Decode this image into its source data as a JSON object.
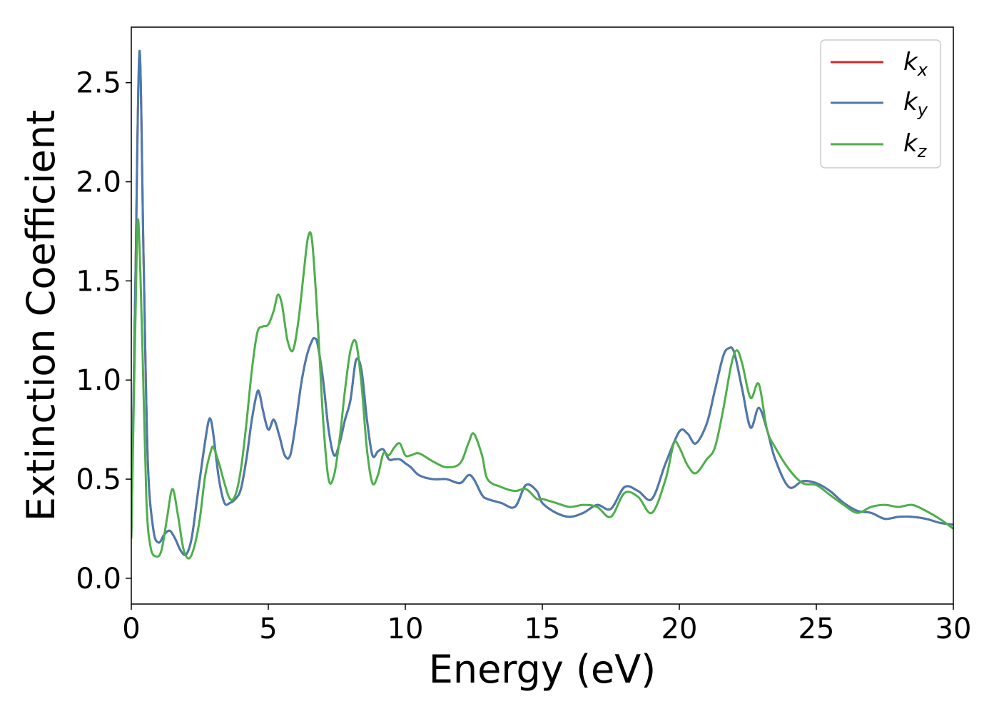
{
  "chart_data": {
    "type": "line",
    "title": "",
    "xlabel": "Energy (eV)",
    "ylabel": "Extinction Coefficient",
    "xlim": [
      0,
      30
    ],
    "ylim": [
      -0.13,
      2.78
    ],
    "xticks": [
      0,
      5,
      10,
      15,
      20,
      25,
      30
    ],
    "yticks": [
      0.0,
      0.5,
      1.0,
      1.5,
      2.0,
      2.5
    ],
    "xtick_labels": [
      "0",
      "5",
      "10",
      "15",
      "20",
      "25",
      "30"
    ],
    "ytick_labels": [
      "0.0",
      "0.5",
      "1.0",
      "1.5",
      "2.0",
      "2.5"
    ],
    "grid": false,
    "legend_position": "top-right",
    "series": [
      {
        "name": "k_x",
        "label_main": "k",
        "label_sub": "x",
        "color": "#d62728",
        "x": [
          0,
          0.15,
          0.3,
          0.45,
          0.6,
          0.8,
          1.0,
          1.2,
          1.4,
          1.6,
          1.8,
          2.0,
          2.2,
          2.4,
          2.6,
          2.8,
          2.9,
          3.0,
          3.2,
          3.4,
          3.6,
          3.8,
          4.0,
          4.2,
          4.4,
          4.6,
          4.7,
          4.8,
          5.0,
          5.2,
          5.4,
          5.6,
          5.8,
          6.0,
          6.2,
          6.4,
          6.6,
          6.7,
          6.8,
          7.0,
          7.2,
          7.4,
          7.6,
          7.8,
          8.0,
          8.2,
          8.4,
          8.6,
          8.8,
          9.0,
          9.2,
          9.4,
          9.6,
          9.8,
          10.0,
          10.2,
          10.5,
          11.0,
          11.5,
          12.0,
          12.3,
          12.5,
          12.8,
          13.0,
          13.5,
          14.0,
          14.4,
          14.8,
          15.0,
          15.5,
          16.0,
          16.5,
          17.0,
          17.5,
          18.0,
          18.5,
          19.0,
          19.5,
          20.0,
          20.3,
          20.6,
          21.0,
          21.3,
          21.6,
          21.8,
          22.0,
          22.3,
          22.6,
          22.9,
          23.2,
          23.5,
          24.0,
          24.5,
          25.0,
          25.5,
          26.0,
          26.5,
          27.0,
          27.5,
          28.0,
          28.5,
          29.0,
          29.5,
          30.0
        ],
        "y": [
          0.2,
          1.5,
          2.66,
          1.6,
          0.6,
          0.25,
          0.18,
          0.22,
          0.24,
          0.2,
          0.14,
          0.12,
          0.2,
          0.4,
          0.6,
          0.78,
          0.8,
          0.72,
          0.5,
          0.38,
          0.38,
          0.4,
          0.45,
          0.6,
          0.8,
          0.94,
          0.92,
          0.85,
          0.75,
          0.8,
          0.72,
          0.62,
          0.62,
          0.78,
          0.98,
          1.12,
          1.2,
          1.21,
          1.18,
          1.0,
          0.75,
          0.62,
          0.68,
          0.8,
          0.9,
          1.1,
          1.05,
          0.8,
          0.62,
          0.64,
          0.65,
          0.6,
          0.6,
          0.6,
          0.58,
          0.56,
          0.52,
          0.5,
          0.5,
          0.48,
          0.52,
          0.5,
          0.42,
          0.4,
          0.38,
          0.36,
          0.47,
          0.44,
          0.38,
          0.33,
          0.31,
          0.33,
          0.37,
          0.35,
          0.46,
          0.44,
          0.4,
          0.58,
          0.74,
          0.73,
          0.68,
          0.78,
          0.95,
          1.12,
          1.16,
          1.14,
          0.95,
          0.76,
          0.86,
          0.75,
          0.6,
          0.46,
          0.49,
          0.48,
          0.44,
          0.38,
          0.34,
          0.33,
          0.3,
          0.31,
          0.31,
          0.3,
          0.28,
          0.27
        ],
        "note_hidden_under": "k_y"
      },
      {
        "name": "k_y",
        "label_main": "k",
        "label_sub": "y",
        "color": "#4a7ab0",
        "x": [
          0,
          0.15,
          0.3,
          0.45,
          0.6,
          0.8,
          1.0,
          1.2,
          1.4,
          1.6,
          1.8,
          2.0,
          2.2,
          2.4,
          2.6,
          2.8,
          2.9,
          3.0,
          3.2,
          3.4,
          3.6,
          3.8,
          4.0,
          4.2,
          4.4,
          4.6,
          4.7,
          4.8,
          5.0,
          5.2,
          5.4,
          5.6,
          5.8,
          6.0,
          6.2,
          6.4,
          6.6,
          6.7,
          6.8,
          7.0,
          7.2,
          7.4,
          7.6,
          7.8,
          8.0,
          8.2,
          8.4,
          8.6,
          8.8,
          9.0,
          9.2,
          9.4,
          9.6,
          9.8,
          10.0,
          10.2,
          10.5,
          11.0,
          11.5,
          12.0,
          12.3,
          12.5,
          12.8,
          13.0,
          13.5,
          14.0,
          14.4,
          14.8,
          15.0,
          15.5,
          16.0,
          16.5,
          17.0,
          17.5,
          18.0,
          18.5,
          19.0,
          19.5,
          20.0,
          20.3,
          20.6,
          21.0,
          21.3,
          21.6,
          21.8,
          22.0,
          22.3,
          22.6,
          22.9,
          23.2,
          23.5,
          24.0,
          24.5,
          25.0,
          25.5,
          26.0,
          26.5,
          27.0,
          27.5,
          28.0,
          28.5,
          29.0,
          29.5,
          30.0
        ],
        "y": [
          0.2,
          1.5,
          2.66,
          1.6,
          0.6,
          0.25,
          0.18,
          0.22,
          0.24,
          0.2,
          0.14,
          0.12,
          0.2,
          0.4,
          0.6,
          0.78,
          0.8,
          0.72,
          0.5,
          0.38,
          0.38,
          0.4,
          0.45,
          0.6,
          0.8,
          0.94,
          0.92,
          0.85,
          0.75,
          0.8,
          0.72,
          0.62,
          0.62,
          0.78,
          0.98,
          1.12,
          1.2,
          1.21,
          1.18,
          1.0,
          0.75,
          0.62,
          0.68,
          0.8,
          0.9,
          1.1,
          1.05,
          0.8,
          0.62,
          0.64,
          0.65,
          0.6,
          0.6,
          0.6,
          0.58,
          0.56,
          0.52,
          0.5,
          0.5,
          0.48,
          0.52,
          0.5,
          0.42,
          0.4,
          0.38,
          0.36,
          0.47,
          0.44,
          0.38,
          0.33,
          0.31,
          0.33,
          0.37,
          0.35,
          0.46,
          0.44,
          0.4,
          0.58,
          0.74,
          0.73,
          0.68,
          0.78,
          0.95,
          1.12,
          1.16,
          1.14,
          0.95,
          0.76,
          0.86,
          0.75,
          0.6,
          0.46,
          0.49,
          0.48,
          0.44,
          0.38,
          0.34,
          0.33,
          0.3,
          0.31,
          0.31,
          0.3,
          0.28,
          0.27
        ]
      },
      {
        "name": "k_z",
        "label_main": "k",
        "label_sub": "z",
        "color": "#4daf4a",
        "x": [
          0,
          0.15,
          0.25,
          0.4,
          0.55,
          0.7,
          0.9,
          1.1,
          1.3,
          1.5,
          1.7,
          1.9,
          2.1,
          2.3,
          2.5,
          2.7,
          2.9,
          3.0,
          3.2,
          3.4,
          3.6,
          3.8,
          4.0,
          4.2,
          4.4,
          4.6,
          4.8,
          5.0,
          5.2,
          5.35,
          5.5,
          5.7,
          5.9,
          6.1,
          6.3,
          6.45,
          6.6,
          6.8,
          7.0,
          7.2,
          7.4,
          7.6,
          7.8,
          8.0,
          8.2,
          8.4,
          8.6,
          8.8,
          9.0,
          9.2,
          9.4,
          9.6,
          9.8,
          10.0,
          10.2,
          10.5,
          11.0,
          11.5,
          12.0,
          12.3,
          12.5,
          12.8,
          13.0,
          13.5,
          14.0,
          14.4,
          14.8,
          15.0,
          15.5,
          16.0,
          16.5,
          17.0,
          17.5,
          18.0,
          18.5,
          19.0,
          19.5,
          19.8,
          20.0,
          20.3,
          20.6,
          21.0,
          21.3,
          21.6,
          21.9,
          22.1,
          22.3,
          22.6,
          22.9,
          23.2,
          23.5,
          24.0,
          24.5,
          25.0,
          25.5,
          26.0,
          26.5,
          27.0,
          27.5,
          28.0,
          28.5,
          29.0,
          29.5,
          30.0
        ],
        "y": [
          0.2,
          1.3,
          1.81,
          1.2,
          0.4,
          0.16,
          0.11,
          0.14,
          0.3,
          0.45,
          0.32,
          0.15,
          0.1,
          0.16,
          0.3,
          0.52,
          0.64,
          0.66,
          0.58,
          0.48,
          0.4,
          0.42,
          0.55,
          0.78,
          1.05,
          1.24,
          1.27,
          1.28,
          1.35,
          1.43,
          1.38,
          1.2,
          1.15,
          1.3,
          1.55,
          1.72,
          1.7,
          1.3,
          0.8,
          0.5,
          0.52,
          0.7,
          0.95,
          1.15,
          1.19,
          0.98,
          0.65,
          0.48,
          0.52,
          0.63,
          0.62,
          0.66,
          0.68,
          0.62,
          0.62,
          0.63,
          0.59,
          0.56,
          0.58,
          0.68,
          0.73,
          0.62,
          0.5,
          0.46,
          0.44,
          0.45,
          0.4,
          0.4,
          0.38,
          0.36,
          0.37,
          0.36,
          0.31,
          0.43,
          0.41,
          0.33,
          0.5,
          0.68,
          0.66,
          0.57,
          0.53,
          0.6,
          0.66,
          0.85,
          1.08,
          1.15,
          1.08,
          0.91,
          0.98,
          0.75,
          0.66,
          0.55,
          0.48,
          0.47,
          0.42,
          0.37,
          0.33,
          0.36,
          0.37,
          0.36,
          0.37,
          0.34,
          0.3,
          0.25
        ]
      }
    ]
  }
}
